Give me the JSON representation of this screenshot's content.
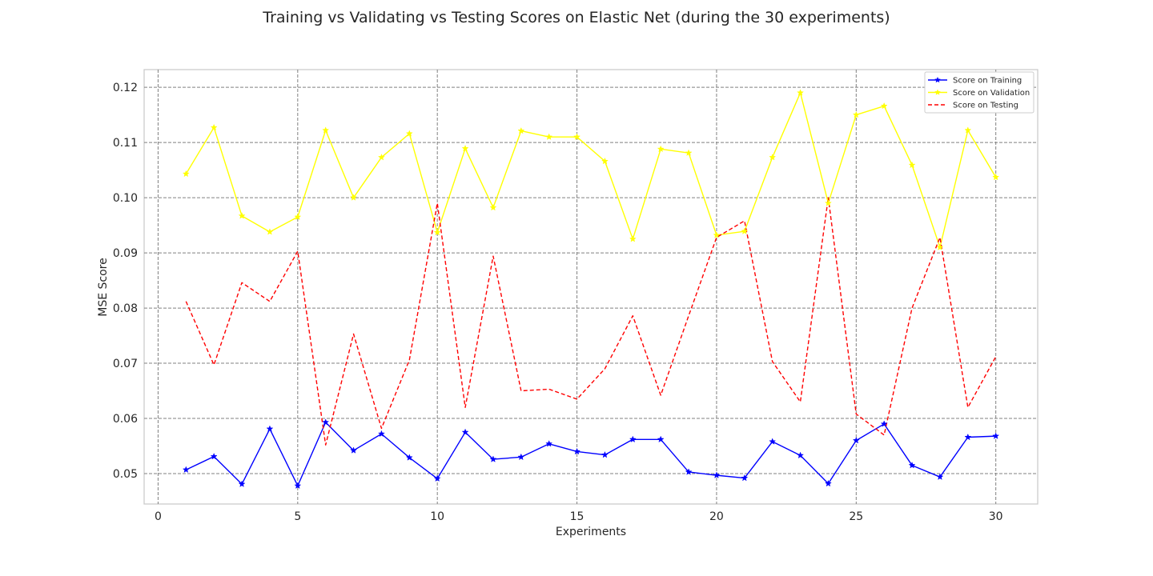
{
  "chart_data": {
    "type": "line",
    "title": "Training vs Validating vs Testing Scores on Elastic Net (during the 30 experiments)",
    "xlabel": "Experiments",
    "ylabel": "MSE Score",
    "xlim": [
      -0.5,
      31.5
    ],
    "ylim": [
      0.0445,
      0.1232
    ],
    "xticks": [
      0,
      5,
      10,
      15,
      20,
      25,
      30
    ],
    "yticks": [
      0.05,
      0.06,
      0.07,
      0.08,
      0.09,
      0.1,
      0.11,
      0.12
    ],
    "ytick_labels": [
      "0.05",
      "0.06",
      "0.07",
      "0.08",
      "0.09",
      "0.10",
      "0.11",
      "0.12"
    ],
    "grid": true,
    "legend_position": "top-right",
    "x": [
      1,
      2,
      3,
      4,
      5,
      6,
      7,
      8,
      9,
      10,
      11,
      12,
      13,
      14,
      15,
      16,
      17,
      18,
      19,
      20,
      21,
      22,
      23,
      24,
      25,
      26,
      27,
      28,
      29,
      30
    ],
    "series": [
      {
        "name": "Score on Training",
        "color": "#0000ff",
        "style": "solid",
        "marker": "star",
        "values": [
          0.0507,
          0.0531,
          0.0481,
          0.0581,
          0.0478,
          0.0593,
          0.0542,
          0.0572,
          0.0529,
          0.0491,
          0.0575,
          0.0526,
          0.053,
          0.0554,
          0.054,
          0.0534,
          0.0562,
          0.0562,
          0.0503,
          0.0497,
          0.0492,
          0.0558,
          0.0533,
          0.0482,
          0.056,
          0.059,
          0.0515,
          0.0494,
          0.0566,
          0.0568
        ]
      },
      {
        "name": "Score on Validation",
        "color": "#ffff00",
        "style": "solid",
        "marker": "star",
        "values": [
          0.1043,
          0.1127,
          0.0967,
          0.0938,
          0.0965,
          0.1122,
          0.1,
          0.1073,
          0.1116,
          0.0937,
          0.1089,
          0.0982,
          0.1121,
          0.111,
          0.111,
          0.1066,
          0.0925,
          0.1088,
          0.1081,
          0.0932,
          0.0939,
          0.1073,
          0.119,
          0.099,
          0.115,
          0.1166,
          0.1059,
          0.091,
          0.1122,
          0.1037
        ]
      },
      {
        "name": "Score on Testing",
        "color": "#ff0000",
        "style": "dashed",
        "marker": "none",
        "values": [
          0.0812,
          0.0697,
          0.0846,
          0.0812,
          0.0903,
          0.0552,
          0.0753,
          0.0582,
          0.0706,
          0.099,
          0.062,
          0.0894,
          0.065,
          0.0653,
          0.0635,
          0.069,
          0.0786,
          0.0642,
          0.0786,
          0.0928,
          0.0958,
          0.0703,
          0.063,
          0.1,
          0.0608,
          0.057,
          0.08,
          0.0928,
          0.062,
          0.0712
        ]
      }
    ]
  }
}
